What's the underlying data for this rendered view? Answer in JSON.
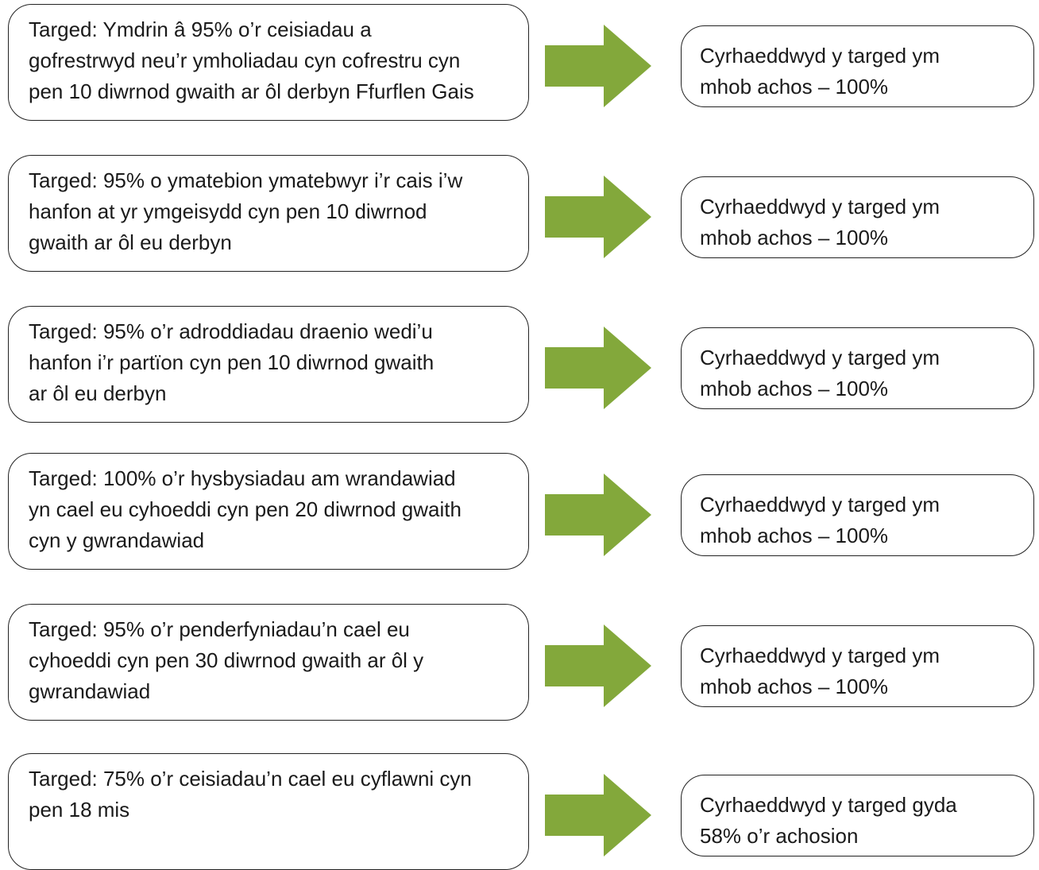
{
  "rows": [
    {
      "target": [
        "Targed: Ymdrin â 95% o’r ceisiadau a",
        "gofrestrwyd neu’r ymholiadau cyn cofrestru cyn",
        "pen 10 diwrnod gwaith ar ôl derbyn Ffurflen Gais"
      ],
      "result": [
        "Cyrhaeddwyd y targed ym",
        "mhob achos – 100%"
      ]
    },
    {
      "target": [
        "Targed: 95% o ymatebion ymatebwyr i’r cais i’w",
        "hanfon at yr ymgeisydd cyn pen 10 diwrnod",
        "gwaith ar ôl eu derbyn"
      ],
      "result": [
        "Cyrhaeddwyd y targed ym",
        "mhob achos – 100%"
      ]
    },
    {
      "target": [
        "Targed: 95% o’r adroddiadau draenio wedi’u",
        "hanfon i’r partïon cyn pen 10 diwrnod gwaith",
        "ar ôl eu derbyn"
      ],
      "result": [
        "Cyrhaeddwyd y targed ym",
        "mhob achos – 100%"
      ]
    },
    {
      "target": [
        "Targed: 100% o’r hysbysiadau am wrandawiad",
        "yn cael eu cyhoeddi cyn pen 20 diwrnod gwaith",
        "cyn y gwrandawiad"
      ],
      "result": [
        "Cyrhaeddwyd y targed ym",
        "mhob achos – 100%"
      ]
    },
    {
      "target": [
        "Targed: 95% o’r penderfyniadau’n cael eu",
        "cyhoeddi cyn pen 30 diwrnod gwaith ar ôl y",
        "gwrandawiad"
      ],
      "result": [
        "Cyrhaeddwyd y targed ym",
        "mhob achos – 100%"
      ]
    },
    {
      "target": [
        "Targed: 75% o’r ceisiadau’n cael eu cyflawni cyn",
        "pen 18 mis"
      ],
      "result": [
        "Cyrhaeddwyd y targed gyda",
        "58% o’r achosion"
      ]
    }
  ]
}
